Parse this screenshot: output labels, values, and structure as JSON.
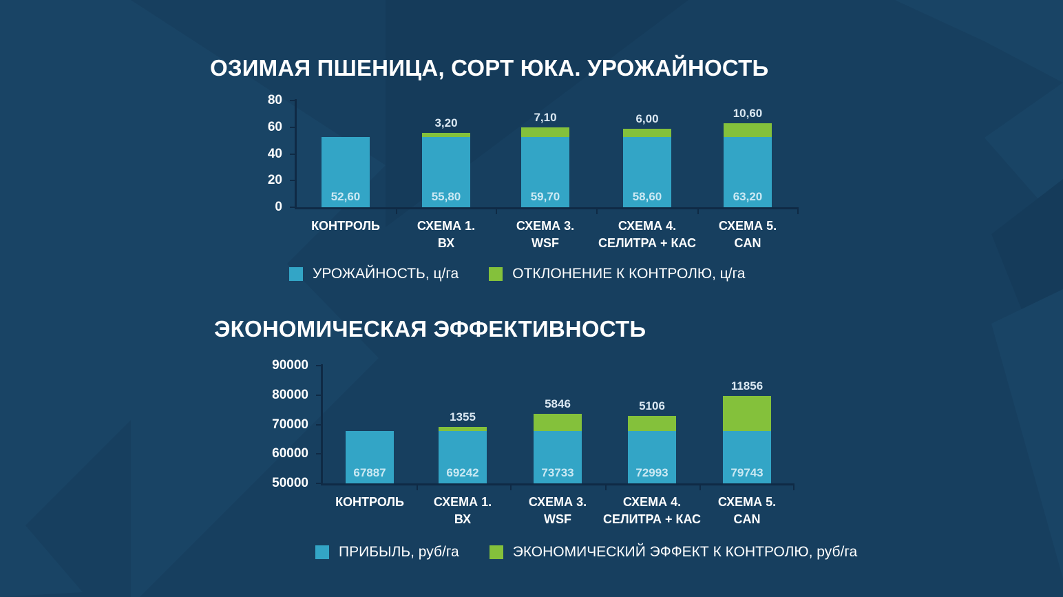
{
  "colors": {
    "background": "#173f5f",
    "base": "#33a5c6",
    "deviation": "#84c13b",
    "axis": "#0f2a45"
  },
  "chart_data": [
    {
      "type": "bar",
      "stacked": true,
      "title": "ОЗИМАЯ ПШЕНИЦА, СОРТ ЮКА. УРОЖАЙНОСТЬ",
      "categories": [
        "КОНТРОЛЬ",
        "СХЕМА 1. ВХ",
        "СХЕМА 3. WSF",
        "СХЕМА 4. СЕЛИТРА + КАС",
        "СХЕМА 5. CAN"
      ],
      "category_lines": [
        [
          "КОНТРОЛЬ"
        ],
        [
          "СХЕМА 1.",
          "ВХ"
        ],
        [
          "СХЕМА 3.",
          "WSF"
        ],
        [
          "СХЕМА 4.",
          "СЕЛИТРА + КАС"
        ],
        [
          "СХЕМА 5.",
          "CAN"
        ]
      ],
      "series": [
        {
          "name": "УРОЖАЙНОСТЬ, ц/га",
          "values": [
            52.6,
            55.8,
            59.7,
            58.6,
            63.2
          ],
          "labels": [
            "52,60",
            "55,80",
            "59,70",
            "58,60",
            "63,20"
          ]
        },
        {
          "name": "ОТКЛОНЕНИЕ К КОНТРОЛЮ, ц/га",
          "values": [
            0,
            3.2,
            7.1,
            6.0,
            10.6
          ],
          "labels": [
            "",
            "3,20",
            "7,10",
            "6,00",
            "10,60"
          ]
        }
      ],
      "base_drawn": 52.6,
      "yticks": [
        "80",
        "60",
        "40",
        "20",
        "0"
      ],
      "ylim": [
        0,
        80
      ],
      "xlabel": "",
      "ylabel": "",
      "grid": false,
      "legend_position": "bottom"
    },
    {
      "type": "bar",
      "stacked": true,
      "title": "ЭКОНОМИЧЕСКАЯ ЭФФЕКТИВНОСТЬ",
      "categories": [
        "КОНТРОЛЬ",
        "СХЕМА 1. ВХ",
        "СХЕМА 3. WSF",
        "СХЕМА 4. СЕЛИТРА + КАС",
        "СХЕМА 5. CAN"
      ],
      "category_lines": [
        [
          "КОНТРОЛЬ"
        ],
        [
          "СХЕМА 1.",
          "ВХ"
        ],
        [
          "СХЕМА 3.",
          "WSF"
        ],
        [
          "СХЕМА 4.",
          "СЕЛИТРА + КАС"
        ],
        [
          "СХЕМА 5.",
          "CAN"
        ]
      ],
      "series": [
        {
          "name": "ПРИБЫЛЬ, руб/га",
          "values": [
            67887,
            69242,
            73733,
            72993,
            79743
          ],
          "labels": [
            "67887",
            "69242",
            "73733",
            "72993",
            "79743"
          ]
        },
        {
          "name": "ЭКОНОМИЧЕСКИЙ ЭФФЕКТ К КОНТРОЛЮ, руб/га",
          "values": [
            0,
            1355,
            5846,
            5106,
            11856
          ],
          "labels": [
            "",
            "1355",
            "5846",
            "5106",
            "11856"
          ]
        }
      ],
      "base_drawn": 67887,
      "yticks": [
        "90000",
        "80000",
        "70000",
        "60000",
        "50000"
      ],
      "ylim": [
        50000,
        90000
      ],
      "xlabel": "",
      "ylabel": "",
      "grid": false,
      "legend_position": "bottom"
    }
  ]
}
